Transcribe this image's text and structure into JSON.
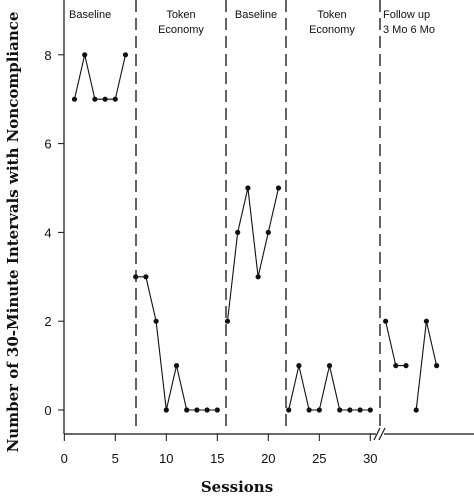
{
  "chart_data": {
    "type": "line",
    "title": "",
    "xlabel": "Sessions",
    "ylabel": "Number of 30-Minute Intervals with Noncompliance",
    "xlim": [
      -0.5,
      40
    ],
    "ylim": [
      -0.5,
      9
    ],
    "x_ticks": [
      0,
      5,
      10,
      15,
      20,
      25,
      30
    ],
    "y_ticks": [
      0,
      2,
      4,
      6,
      8
    ],
    "grid": false,
    "axis_break_after": 30,
    "phases": [
      {
        "label": "Baseline",
        "start_x": 0,
        "end_x": 6.5
      },
      {
        "label": "Token\nEconomy",
        "start_x": 6.5,
        "end_x": 15.5
      },
      {
        "label": "Baseline",
        "start_x": 15.5,
        "end_x": 21.5
      },
      {
        "label": "Token\nEconomy",
        "start_x": 21.5,
        "end_x": 31
      },
      {
        "label": "Follow up\n3 Mo   6 Mo",
        "start_x": 31,
        "end_x": 40
      }
    ],
    "phase_boundaries": [
      6.5,
      15.5,
      21.5,
      31
    ],
    "series": [
      {
        "name": "",
        "segments": [
          {
            "x": [
              1,
              2,
              3,
              4,
              5,
              6
            ],
            "y": [
              7,
              8,
              7,
              7,
              7,
              8
            ]
          },
          {
            "x": [
              7,
              8,
              9,
              10,
              11,
              12,
              13,
              14,
              15
            ],
            "y": [
              3,
              3,
              2,
              0,
              1,
              0,
              0,
              0,
              0
            ]
          },
          {
            "x": [
              16,
              17,
              18,
              19,
              20,
              21
            ],
            "y": [
              2,
              4,
              5,
              3,
              4,
              5
            ]
          },
          {
            "x": [
              22,
              23,
              24,
              25,
              26,
              27,
              28,
              29,
              30
            ],
            "y": [
              0,
              1,
              0,
              0,
              1,
              0,
              0,
              0,
              0
            ]
          },
          {
            "x": [
              31.5,
              32.5,
              33.5
            ],
            "y": [
              2,
              1,
              1
            ]
          },
          {
            "x": [
              34.5,
              35.5,
              36.5
            ],
            "y": [
              0,
              2,
              1
            ]
          }
        ]
      }
    ]
  }
}
